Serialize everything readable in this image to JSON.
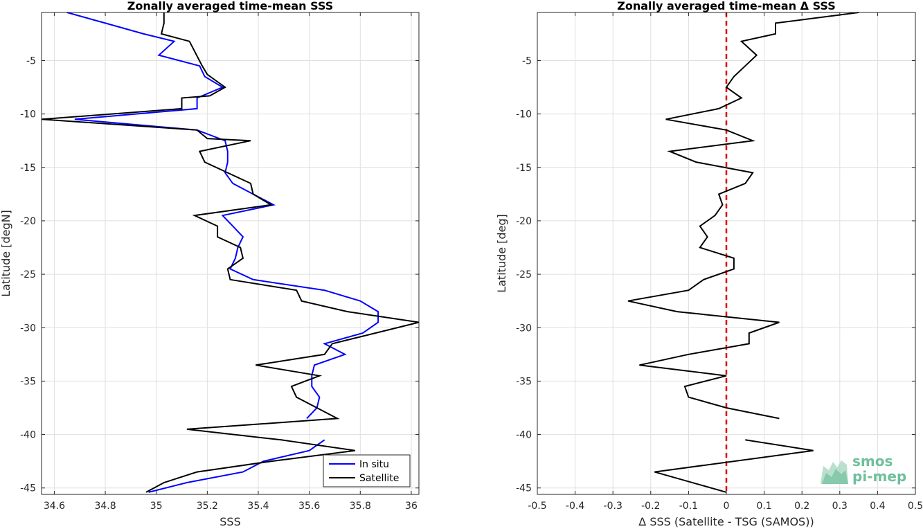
{
  "logo": {
    "line1": "smos",
    "line2": "pi-mep"
  },
  "chart_data": [
    {
      "type": "line",
      "title": "Zonally averaged time-mean SSS",
      "xlabel": "SSS",
      "ylabel": "Latitude [degN]",
      "xlim": [
        34.55,
        36.03
      ],
      "ylim": [
        -45.6,
        -0.5
      ],
      "xticks": [
        34.6,
        34.8,
        35,
        35.2,
        35.4,
        35.6,
        35.8,
        36
      ],
      "xticklabels": [
        "34.6",
        "34.8",
        "35",
        "35.2",
        "35.4",
        "35.6",
        "35.8",
        "36"
      ],
      "yticks": [
        -5,
        -10,
        -15,
        -20,
        -25,
        -30,
        -35,
        -40,
        -45
      ],
      "yticklabels": [
        "-5",
        "-10",
        "-15",
        "-20",
        "-25",
        "-30",
        "-35",
        "-40",
        "-45"
      ],
      "grid": true,
      "legend": "bottom-right",
      "colors": {
        "in_situ": "#0000ff",
        "satellite": "#000000"
      },
      "series": [
        {
          "name": "In situ",
          "color": "#0000ff",
          "lines": [
            [
              [
                34.65,
                -0.5
              ],
              [
                34.8,
                -1.5
              ],
              [
                34.95,
                -2.5
              ],
              [
                35.07,
                -3.2
              ],
              [
                35.01,
                -4.5
              ],
              [
                35.17,
                -5.5
              ],
              [
                35.19,
                -6.5
              ],
              [
                35.26,
                -7.5
              ],
              [
                35.16,
                -8.5
              ],
              [
                35.16,
                -9.5
              ],
              [
                34.68,
                -10.5
              ],
              [
                35.16,
                -11.5
              ],
              [
                35.27,
                -12.5
              ],
              [
                35.28,
                -13.5
              ],
              [
                35.28,
                -14.5
              ],
              [
                35.27,
                -15.5
              ],
              [
                35.3,
                -16.5
              ],
              [
                35.38,
                -17.5
              ],
              [
                35.46,
                -18.5
              ],
              [
                35.26,
                -19.5
              ],
              [
                35.3,
                -20.5
              ],
              [
                35.34,
                -21.5
              ],
              [
                35.32,
                -22.5
              ],
              [
                35.31,
                -23.5
              ],
              [
                35.29,
                -24.5
              ],
              [
                35.38,
                -25.5
              ],
              [
                35.66,
                -26.5
              ],
              [
                35.8,
                -27.5
              ],
              [
                35.87,
                -28.5
              ],
              [
                35.87,
                -29.5
              ],
              [
                35.81,
                -30.5
              ],
              [
                35.66,
                -31.5
              ],
              [
                35.74,
                -32.5
              ],
              [
                35.62,
                -33.5
              ],
              [
                35.61,
                -34.5
              ],
              [
                35.61,
                -35.5
              ],
              [
                35.64,
                -36.5
              ],
              [
                35.63,
                -37.5
              ],
              [
                35.59,
                -38.5
              ]
            ],
            [
              [
                35.66,
                -40.5
              ],
              [
                35.6,
                -41.5
              ],
              [
                35.42,
                -42.5
              ],
              [
                35.34,
                -43.5
              ],
              [
                35.12,
                -44.5
              ],
              [
                34.97,
                -45.4
              ]
            ]
          ]
        },
        {
          "name": "Satellite",
          "color": "#000000",
          "lines": [
            [
              [
                35.03,
                -0.5
              ],
              [
                35.03,
                -1.5
              ],
              [
                35.02,
                -2.5
              ],
              [
                35.13,
                -3.2
              ],
              [
                35.18,
                -5.5
              ],
              [
                35.2,
                -6.3
              ],
              [
                35.27,
                -7.5
              ],
              [
                35.21,
                -8.3
              ],
              [
                35.1,
                -8.5
              ],
              [
                35.1,
                -9.5
              ],
              [
                34.55,
                -10.5
              ],
              [
                35.16,
                -11.5
              ],
              [
                35.2,
                -12.3
              ],
              [
                35.37,
                -12.5
              ],
              [
                35.17,
                -13.5
              ],
              [
                35.19,
                -14.5
              ],
              [
                35.28,
                -15.5
              ],
              [
                35.37,
                -16.5
              ],
              [
                35.38,
                -17.5
              ],
              [
                35.45,
                -18.5
              ],
              [
                35.15,
                -19.5
              ],
              [
                35.24,
                -20.5
              ],
              [
                35.24,
                -21.5
              ],
              [
                35.33,
                -22.5
              ],
              [
                35.34,
                -23.5
              ],
              [
                35.28,
                -24.5
              ],
              [
                35.29,
                -25.5
              ],
              [
                35.55,
                -26.5
              ],
              [
                35.57,
                -27.5
              ],
              [
                35.75,
                -28.5
              ],
              [
                36.03,
                -29.5
              ],
              [
                35.86,
                -30.5
              ],
              [
                35.69,
                -31.5
              ],
              [
                35.66,
                -32.5
              ],
              [
                35.39,
                -33.5
              ],
              [
                35.64,
                -34.5
              ],
              [
                35.53,
                -35.5
              ],
              [
                35.55,
                -36.5
              ],
              [
                35.71,
                -38.5
              ],
              [
                35.12,
                -39.5
              ],
              [
                35.49,
                -40.5
              ],
              [
                35.78,
                -41.5
              ],
              [
                35.45,
                -42.5
              ],
              [
                35.16,
                -43.5
              ],
              [
                35.03,
                -44.5
              ],
              [
                34.96,
                -45.4
              ]
            ]
          ]
        }
      ]
    },
    {
      "type": "line",
      "title": "Zonally averaged time-mean Δ SSS",
      "xlabel": "Δ SSS (Satellite - TSG (SAMOS))",
      "ylabel": "Latitude [deg]",
      "xlim": [
        -0.5,
        0.5
      ],
      "ylim": [
        -45.6,
        -0.5
      ],
      "xticks": [
        -0.5,
        -0.4,
        -0.3,
        -0.2,
        -0.1,
        0,
        0.1,
        0.2,
        0.3,
        0.4,
        0.5
      ],
      "xticklabels": [
        "-0.5",
        "-0.4",
        "-0.3",
        "-0.2",
        "-0.1",
        "0",
        "0.1",
        "0.2",
        "0.3",
        "0.4",
        "0.5"
      ],
      "yticks": [
        -5,
        -10,
        -15,
        -20,
        -25,
        -30,
        -35,
        -40,
        -45
      ],
      "yticklabels": [
        "-5",
        "-10",
        "-15",
        "-20",
        "-25",
        "-30",
        "-35",
        "-40",
        "-45"
      ],
      "grid": true,
      "reference_line": {
        "x": 0,
        "color": "#dd0000",
        "style": "dashed"
      },
      "series": [
        {
          "color": "#000000",
          "lines": [
            [
              [
                0.35,
                -0.5
              ],
              [
                0.13,
                -1.5
              ],
              [
                0.13,
                -2.5
              ],
              [
                0.04,
                -3.2
              ],
              [
                0.08,
                -4.5
              ],
              [
                0.05,
                -5.5
              ],
              [
                0.02,
                -6.5
              ],
              [
                0.0,
                -7.5
              ],
              [
                0.04,
                -8.5
              ],
              [
                -0.02,
                -9.5
              ],
              [
                -0.16,
                -10.5
              ],
              [
                0.0,
                -11.5
              ],
              [
                0.07,
                -12.5
              ],
              [
                -0.15,
                -13.5
              ],
              [
                -0.08,
                -14.5
              ],
              [
                0.07,
                -15.5
              ],
              [
                0.05,
                -16.5
              ],
              [
                -0.02,
                -17.5
              ],
              [
                -0.01,
                -18.5
              ],
              [
                -0.03,
                -19.5
              ],
              [
                -0.07,
                -20.5
              ],
              [
                -0.05,
                -21.5
              ],
              [
                -0.07,
                -22.5
              ],
              [
                0.02,
                -23.5
              ],
              [
                0.02,
                -24.5
              ],
              [
                -0.06,
                -25.5
              ],
              [
                -0.1,
                -26.5
              ],
              [
                -0.26,
                -27.5
              ],
              [
                -0.13,
                -28.5
              ],
              [
                0.14,
                -29.5
              ],
              [
                0.06,
                -30.5
              ],
              [
                0.06,
                -31.5
              ],
              [
                -0.1,
                -32.5
              ],
              [
                -0.23,
                -33.5
              ],
              [
                0.0,
                -34.5
              ],
              [
                -0.11,
                -35.5
              ],
              [
                -0.1,
                -36.5
              ],
              [
                0.0,
                -37.5
              ],
              [
                0.14,
                -38.5
              ]
            ],
            [
              [
                0.05,
                -40.5
              ],
              [
                0.23,
                -41.5
              ],
              [
                -0.19,
                -43.5
              ],
              [
                0.0,
                -45.4
              ]
            ]
          ]
        }
      ]
    }
  ]
}
